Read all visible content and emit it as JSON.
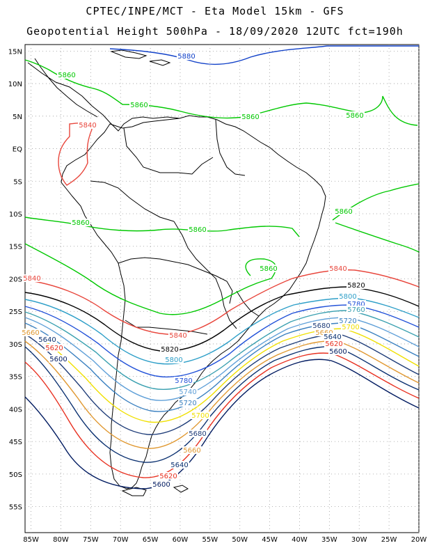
{
  "header": {
    "line1": "CPTEC/INPE/MCT -  Eta Model 15km - GFS",
    "line2": "Geopotential Height 500hPa - 18/09/2020 12UTC fct=190h"
  },
  "axes": {
    "lon_range": [
      -86,
      -20
    ],
    "lat_range": [
      -59,
      16
    ],
    "lon_labels": [
      "85W",
      "80W",
      "75W",
      "70W",
      "65W",
      "60W",
      "55W",
      "50W",
      "45W",
      "40W",
      "35W",
      "30W",
      "25W",
      "20W"
    ],
    "lat_labels": [
      "15N",
      "10N",
      "5N",
      "EQ",
      "5S",
      "10S",
      "15S",
      "20S",
      "25S",
      "30S",
      "35S",
      "40S",
      "45S",
      "50S",
      "55S"
    ],
    "grid": true
  },
  "colors": {
    "5860": "#00c800",
    "5840": "#e8463c",
    "5820": "#000000",
    "5800": "#2e9fc8",
    "5780": "#2050d8",
    "5760": "#3aa0b0",
    "5740": "#60a0d8",
    "5720": "#3a80c0",
    "5700": "#f0e000",
    "5680": "#1e3c78",
    "5660": "#e09830",
    "5640": "#0a3070",
    "5620": "#e83020",
    "5600": "#001a60",
    "5880": "#1040c8"
  },
  "contours": [
    {
      "level": "5880",
      "labels": [
        "5880"
      ]
    },
    {
      "level": "5860",
      "labels": [
        "5860",
        "5860",
        "5860",
        "5860",
        "5860",
        "5860",
        "5860",
        "5860"
      ]
    },
    {
      "level": "5840",
      "labels": [
        "5840",
        "5840",
        "5840",
        "5840"
      ]
    },
    {
      "level": "5820",
      "labels": [
        "5820",
        "5820"
      ]
    },
    {
      "level": "5800",
      "labels": [
        "5800",
        "5800"
      ]
    },
    {
      "level": "5780",
      "labels": [
        "5780",
        "5780"
      ]
    },
    {
      "level": "5760",
      "labels": [
        "5760"
      ]
    },
    {
      "level": "5740",
      "labels": [
        "5740"
      ]
    },
    {
      "level": "5720",
      "labels": [
        "5720",
        "5720"
      ]
    },
    {
      "level": "5700",
      "labels": [
        "5700",
        "5700"
      ]
    },
    {
      "level": "5680",
      "labels": [
        "5680",
        "5680"
      ]
    },
    {
      "level": "5660",
      "labels": [
        "5660",
        "5660",
        "5660"
      ]
    },
    {
      "level": "5640",
      "labels": [
        "5640",
        "5640",
        "5640"
      ]
    },
    {
      "level": "5620",
      "labels": [
        "5620",
        "5620",
        "5620"
      ]
    },
    {
      "level": "5600",
      "labels": [
        "5600",
        "5600",
        "5600"
      ]
    }
  ]
}
